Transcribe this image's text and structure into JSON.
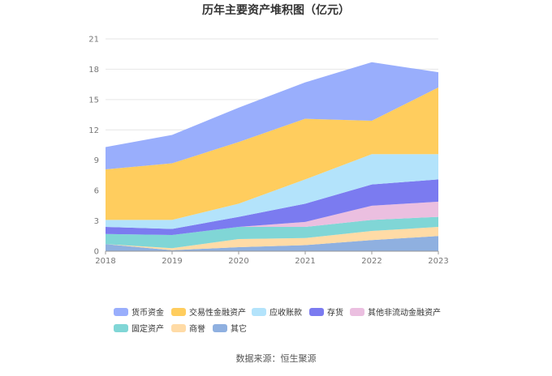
{
  "chart_data": {
    "type": "area",
    "stacked": true,
    "title": "历年主要资产堆积图（亿元）",
    "x": [
      "2018",
      "2019",
      "2020",
      "2021",
      "2022",
      "2023"
    ],
    "ylim": [
      0,
      21
    ],
    "yticks": [
      "0",
      "3",
      "6",
      "9",
      "12",
      "15",
      "18",
      "21"
    ],
    "grid": true,
    "legend_position": "bottom",
    "series": [
      {
        "name": "其它",
        "color": "#8fb0e0",
        "values": [
          0.7,
          0.1,
          0.4,
          0.6,
          1.1,
          1.5
        ]
      },
      {
        "name": "商誉",
        "color": "#ffdba6",
        "values": [
          0.0,
          0.2,
          0.8,
          0.7,
          0.9,
          0.9
        ]
      },
      {
        "name": "固定资产",
        "color": "#80d6d6",
        "values": [
          1.0,
          1.3,
          1.2,
          1.1,
          1.1,
          1.0
        ]
      },
      {
        "name": "其他非流动金融资产",
        "color": "#ebbfe0",
        "values": [
          0.0,
          0.0,
          0.0,
          0.5,
          1.4,
          1.5
        ]
      },
      {
        "name": "存货",
        "color": "#7b7bf0",
        "values": [
          0.7,
          0.6,
          1.0,
          1.8,
          2.1,
          2.2
        ]
      },
      {
        "name": "应收账款",
        "color": "#b3e3fb",
        "values": [
          0.7,
          0.9,
          1.3,
          2.4,
          3.0,
          2.5
        ]
      },
      {
        "name": "交易性金融资产",
        "color": "#ffcd5e",
        "values": [
          5.0,
          5.6,
          6.1,
          6.0,
          3.3,
          6.6
        ]
      },
      {
        "name": "货币资金",
        "color": "#99aefc",
        "values": [
          2.2,
          2.8,
          3.4,
          3.6,
          5.8,
          1.5
        ]
      }
    ],
    "legend_order": [
      "货币资金",
      "交易性金融资产",
      "应收账款",
      "存货",
      "其他非流动金融资产",
      "固定资产",
      "商誉",
      "其它"
    ]
  },
  "source_note": "数据来源：恒生聚源"
}
